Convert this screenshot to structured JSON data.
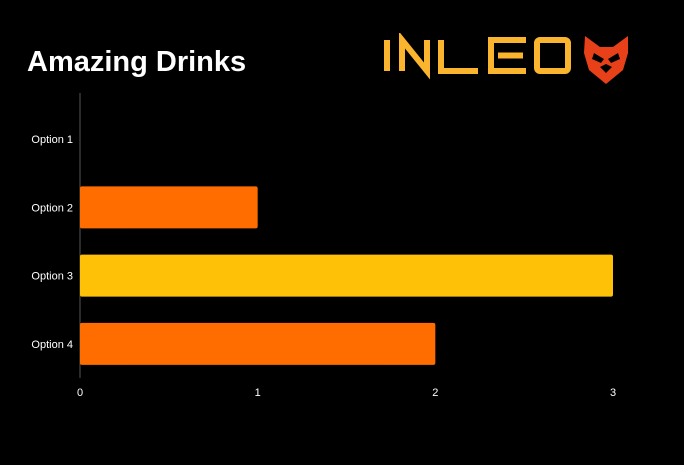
{
  "chart_data": {
    "type": "bar",
    "orientation": "horizontal",
    "title": "Amazing Drinks",
    "categories": [
      "Option 1",
      "Option 2",
      "Option 3",
      "Option 4"
    ],
    "values": [
      0,
      1,
      3,
      2
    ],
    "bar_colors": [
      "#ff6d00",
      "#ff6d00",
      "#ffc107",
      "#ff6d00"
    ],
    "xlabel": "",
    "ylabel": "",
    "xlim": [
      0,
      3
    ],
    "x_ticks": [
      0,
      1,
      2,
      3
    ],
    "grid": false,
    "legend": "none"
  },
  "branding": {
    "logo_text": "INLEO",
    "logo_icon": "lion-head-icon",
    "logo_text_color": "#fbb42d",
    "logo_icon_color": "#e8411a"
  },
  "colors": {
    "background": "#000000",
    "text": "#ffffff",
    "axis": "#555555"
  }
}
